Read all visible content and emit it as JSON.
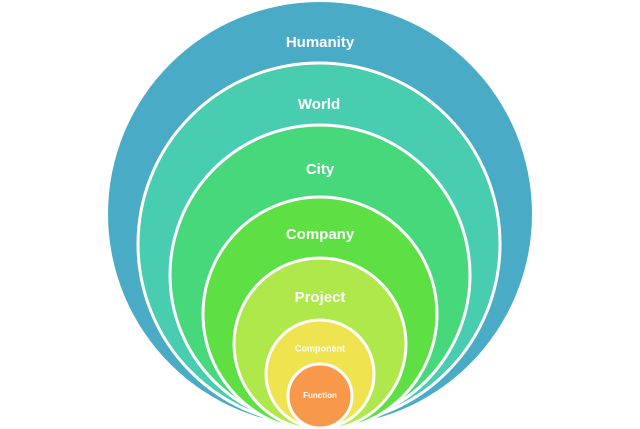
{
  "diagram": {
    "rings": [
      {
        "label": "Humanity",
        "color": "#4aabc6"
      },
      {
        "label": "World",
        "color": "#49cdb0"
      },
      {
        "label": "City",
        "color": "#47d87c"
      },
      {
        "label": "Company",
        "color": "#5ee045"
      },
      {
        "label": "Project",
        "color": "#afe84a"
      },
      {
        "label": "Component",
        "color": "#efe34f"
      },
      {
        "label": "Function",
        "color": "#f7984b"
      }
    ],
    "outline_color": "#ffffff"
  }
}
